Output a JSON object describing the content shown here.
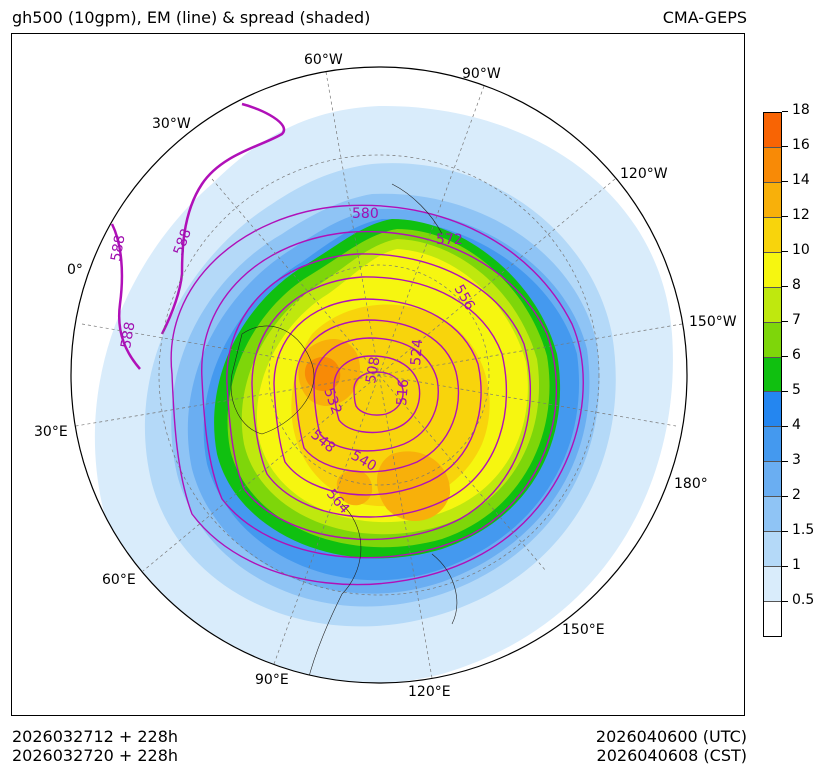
{
  "title_left": "gh500 (10gpm), EM (line) & spread (shaded)",
  "title_right": "CMA-GEPS",
  "footer": {
    "init_utc": "2026032712 + 228h",
    "init_cst": "2026032720 + 228h",
    "valid_utc": "2026040600 (UTC)",
    "valid_cst": "2026040608 (CST)"
  },
  "map": {
    "projection": "north-polar-stereographic",
    "lon_labels": [
      "60°W",
      "90°W",
      "30°W",
      "120°W",
      "0°",
      "150°W",
      "30°E",
      "180°",
      "60°E",
      "150°E",
      "90°E",
      "120°E"
    ],
    "contour_labels": [
      "580",
      "572",
      "588",
      "588",
      "588",
      "556",
      "524",
      "508",
      "516",
      "532",
      "548",
      "540",
      "564"
    ],
    "contour_color": "#b010b8"
  },
  "colorbar": {
    "levels": [
      "0.5",
      "1",
      "1.5",
      "2",
      "3",
      "4",
      "5",
      "6",
      "7",
      "8",
      "10",
      "12",
      "14",
      "16",
      "18"
    ],
    "colors": [
      "#ffffff",
      "#d9ecfb",
      "#b4d9f8",
      "#8fc4f5",
      "#6aaef2",
      "#4499ef",
      "#2486f0",
      "#10c010",
      "#7ed60a",
      "#bfe80e",
      "#f6f610",
      "#f8d40c",
      "#f8b00a",
      "#f88a06",
      "#f86404"
    ]
  }
}
